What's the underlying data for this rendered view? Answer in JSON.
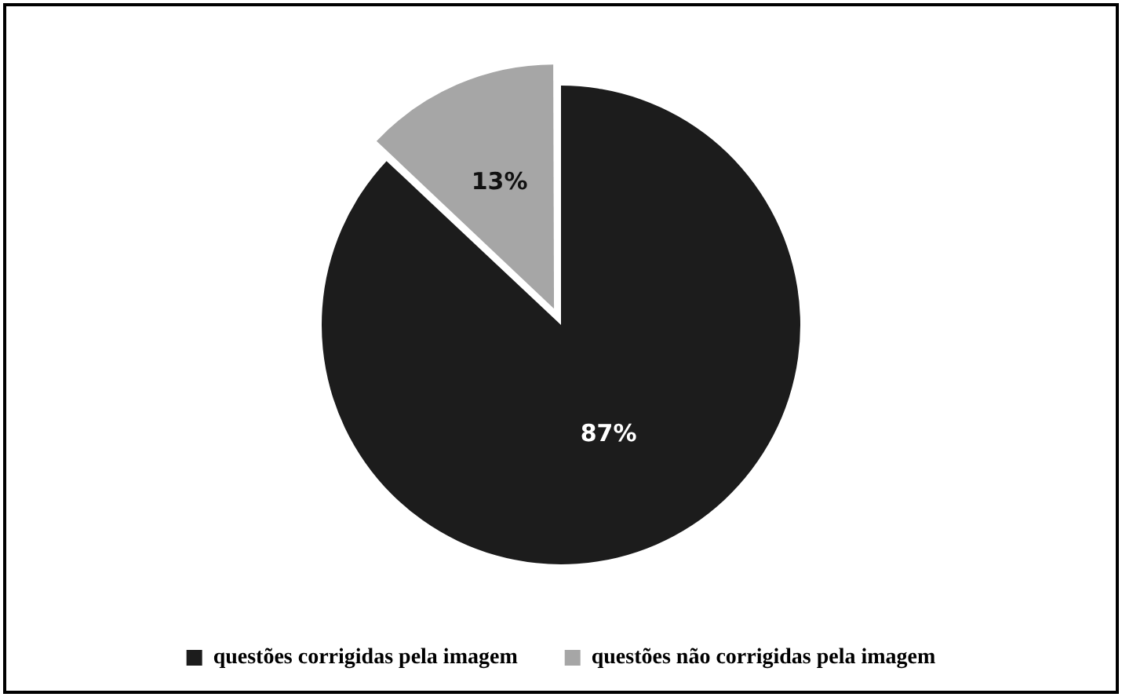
{
  "chart_data": {
    "type": "pie",
    "categories": [
      "questões corrigidas pela imagem",
      "questões não corrigidas pela imagem"
    ],
    "values": [
      87,
      13
    ],
    "colors": [
      "#1c1c1c",
      "#a6a6a6"
    ],
    "value_labels": [
      "87%",
      "13%"
    ],
    "legend": "bottom"
  }
}
